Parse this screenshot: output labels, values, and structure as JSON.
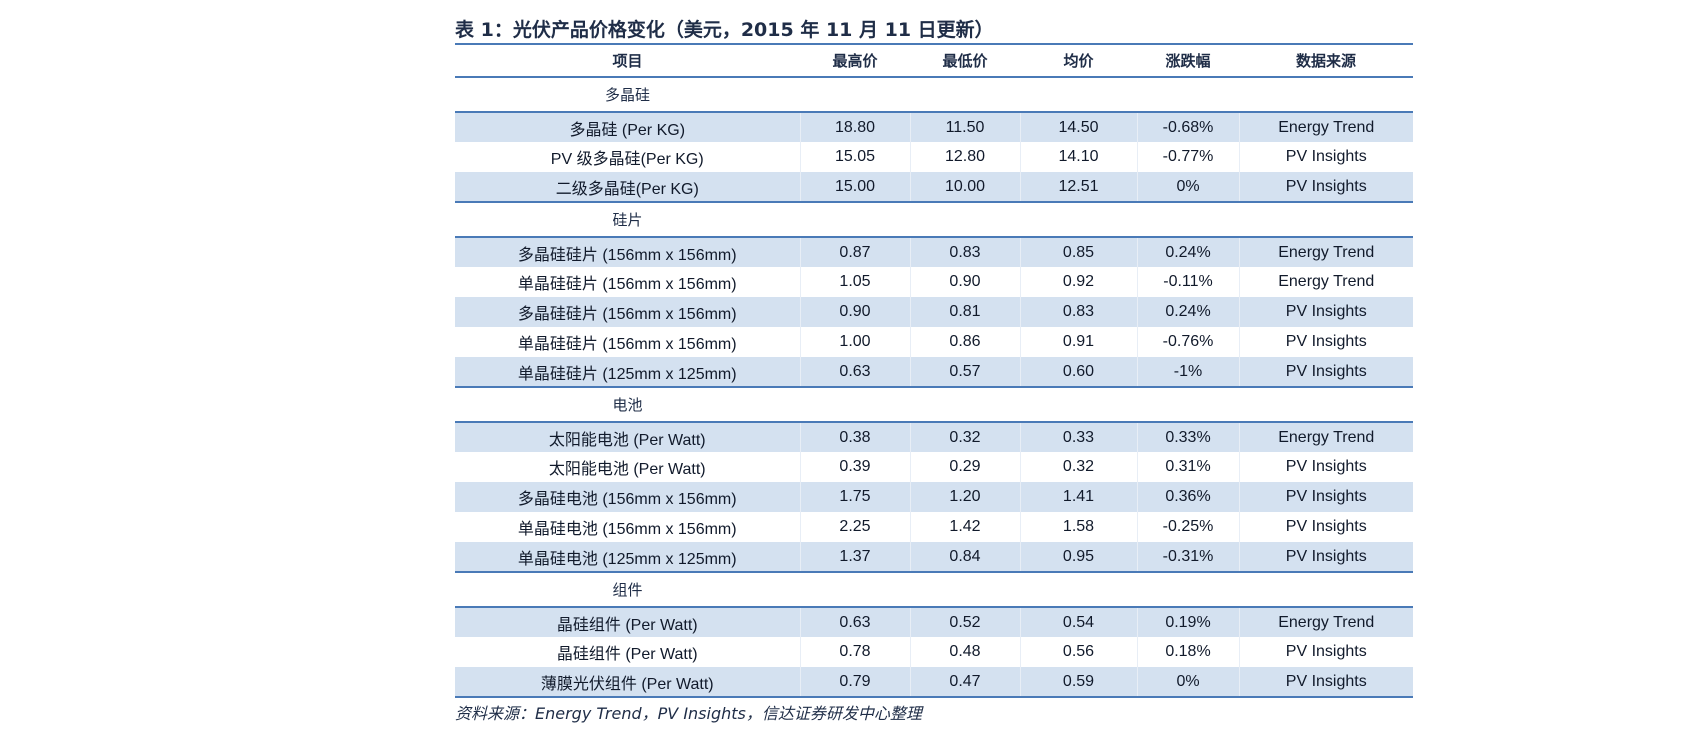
{
  "title": "表 1：光伏产品价格变化（美元，2015 年 11 月 11 日更新）",
  "headers": [
    "项目",
    "最高价",
    "最低价",
    "均价",
    "涨跌幅",
    "数据来源"
  ],
  "sections": [
    {
      "name": "多晶硅",
      "rows": [
        {
          "item": "多晶硅 (Per KG)",
          "high": "18.80",
          "low": "11.50",
          "avg": "14.50",
          "change": "-0.68%",
          "source": "Energy Trend"
        },
        {
          "item": "PV 级多晶硅(Per KG)",
          "high": "15.05",
          "low": "12.80",
          "avg": "14.10",
          "change": "-0.77%",
          "source": "PV Insights"
        },
        {
          "item": "二级多晶硅(Per KG)",
          "high": "15.00",
          "low": "10.00",
          "avg": "12.51",
          "change": "0%",
          "source": "PV Insights"
        }
      ]
    },
    {
      "name": "硅片",
      "rows": [
        {
          "item": "多晶硅硅片 (156mm x 156mm)",
          "high": "0.87",
          "low": "0.83",
          "avg": "0.85",
          "change": "0.24%",
          "source": "Energy Trend"
        },
        {
          "item": "单晶硅硅片 (156mm x 156mm)",
          "high": "1.05",
          "low": "0.90",
          "avg": "0.92",
          "change": "-0.11%",
          "source": "Energy Trend"
        },
        {
          "item": "多晶硅硅片 (156mm x 156mm)",
          "high": "0.90",
          "low": "0.81",
          "avg": "0.83",
          "change": "0.24%",
          "source": "PV Insights"
        },
        {
          "item": "单晶硅硅片 (156mm x 156mm)",
          "high": "1.00",
          "low": "0.86",
          "avg": "0.91",
          "change": "-0.76%",
          "source": "PV Insights"
        },
        {
          "item": "单晶硅硅片 (125mm x 125mm)",
          "high": "0.63",
          "low": "0.57",
          "avg": "0.60",
          "change": "-1%",
          "source": "PV Insights"
        }
      ]
    },
    {
      "name": "电池",
      "rows": [
        {
          "item": "太阳能电池 (Per Watt)",
          "high": "0.38",
          "low": "0.32",
          "avg": "0.33",
          "change": "0.33%",
          "source": "Energy Trend"
        },
        {
          "item": "太阳能电池 (Per Watt)",
          "high": "0.39",
          "low": "0.29",
          "avg": "0.32",
          "change": "0.31%",
          "source": "PV Insights"
        },
        {
          "item": "多晶硅电池 (156mm x 156mm)",
          "high": "1.75",
          "low": "1.20",
          "avg": "1.41",
          "change": "0.36%",
          "source": "PV Insights"
        },
        {
          "item": "单晶硅电池 (156mm x 156mm)",
          "high": "2.25",
          "low": "1.42",
          "avg": "1.58",
          "change": "-0.25%",
          "source": "PV Insights"
        },
        {
          "item": "单晶硅电池 (125mm x 125mm)",
          "high": "1.37",
          "low": "0.84",
          "avg": "0.95",
          "change": "-0.31%",
          "source": "PV Insights"
        }
      ]
    },
    {
      "name": "组件",
      "rows": [
        {
          "item": "晶硅组件 (Per Watt)",
          "high": "0.63",
          "low": "0.52",
          "avg": "0.54",
          "change": "0.19%",
          "source": "Energy Trend"
        },
        {
          "item": "晶硅组件 (Per Watt)",
          "high": "0.78",
          "low": "0.48",
          "avg": "0.56",
          "change": "0.18%",
          "source": "PV Insights"
        },
        {
          "item": "薄膜光伏组件 (Per Watt)",
          "high": "0.79",
          "low": "0.47",
          "avg": "0.59",
          "change": "0%",
          "source": "PV Insights"
        }
      ]
    }
  ],
  "source_note": "资料来源：Energy Trend，PV Insights，信达证券研发中心整理",
  "colors": {
    "rule": "#4a7ab7",
    "shade": "#d4e1f0",
    "text": "#1f2d47"
  }
}
